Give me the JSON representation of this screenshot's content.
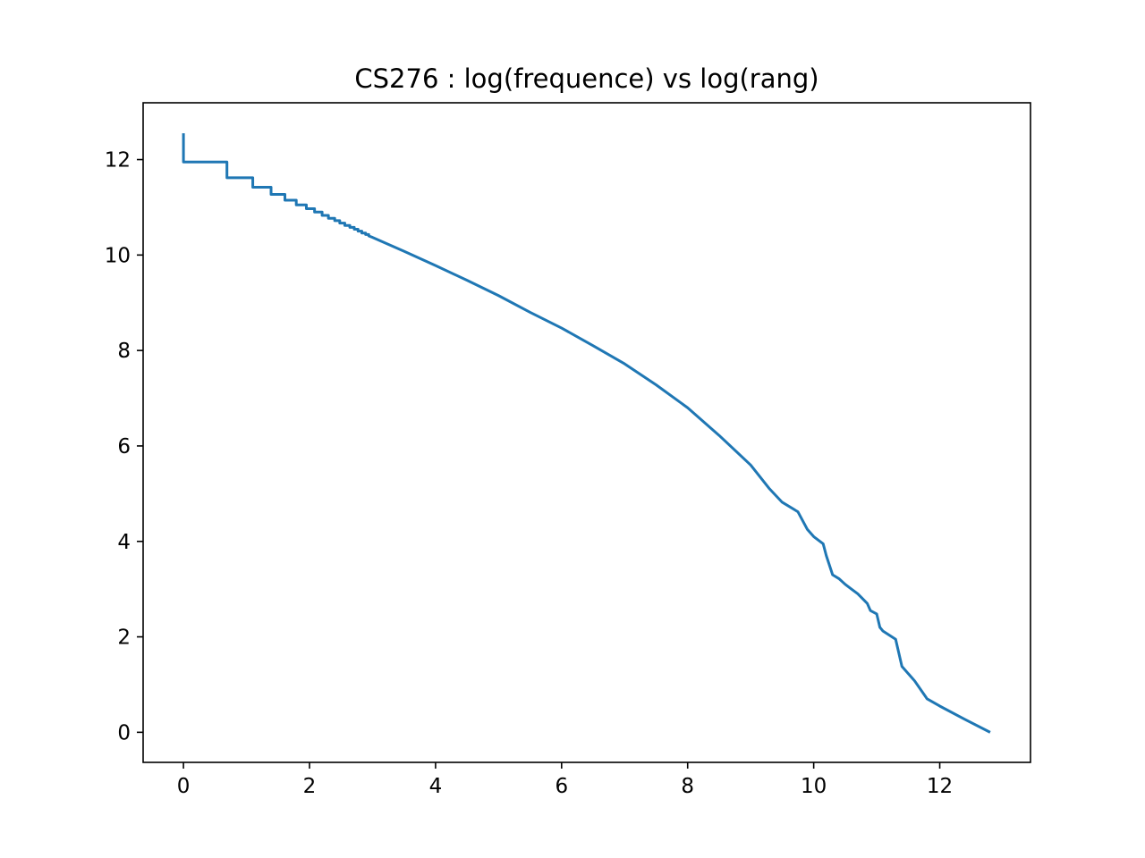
{
  "chart_data": {
    "type": "line",
    "title": "CS276 : log(frequence) vs log(rang)",
    "xlabel": "",
    "ylabel": "",
    "xlim": [
      -0.64,
      13.44
    ],
    "ylim": [
      -0.63,
      13.19
    ],
    "xticks": [
      0,
      2,
      4,
      6,
      8,
      10,
      12
    ],
    "yticks": [
      0,
      2,
      4,
      6,
      8,
      10,
      12
    ],
    "grid": false,
    "color": "#1f77b4",
    "series": [
      {
        "x": [
          0,
          0,
          0.69,
          0.69,
          1.1,
          1.1,
          1.39,
          1.39,
          1.61,
          1.61,
          1.79,
          1.79,
          1.95,
          1.95,
          2.08,
          2.08,
          2.2,
          2.2,
          2.3,
          2.3,
          2.4,
          2.4,
          2.48,
          2.48,
          2.56,
          2.56,
          2.64,
          2.64,
          2.71,
          2.71,
          2.77,
          2.77,
          2.83,
          2.83,
          2.89,
          2.89,
          2.94,
          2.94,
          3.0,
          3.5,
          4.0,
          4.5,
          5.0,
          5.5,
          6.0,
          6.5,
          7.0,
          7.5,
          8.0,
          8.5,
          9.0,
          9.3,
          9.5,
          9.75,
          9.9,
          10.0,
          10.15,
          10.2,
          10.3,
          10.4,
          10.5,
          10.6,
          10.7,
          10.85,
          10.9,
          11.0,
          11.05,
          11.1,
          11.3,
          11.4,
          11.6,
          11.8,
          12.0,
          12.4,
          12.8
        ],
        "y": [
          12.55,
          11.95,
          11.95,
          11.62,
          11.62,
          11.42,
          11.42,
          11.27,
          11.27,
          11.15,
          11.15,
          11.05,
          11.05,
          10.97,
          10.97,
          10.9,
          10.9,
          10.83,
          10.83,
          10.77,
          10.77,
          10.72,
          10.72,
          10.67,
          10.67,
          10.62,
          10.62,
          10.58,
          10.58,
          10.54,
          10.54,
          10.5,
          10.5,
          10.46,
          10.46,
          10.43,
          10.43,
          10.4,
          10.37,
          10.08,
          9.78,
          9.47,
          9.15,
          8.8,
          8.47,
          8.1,
          7.72,
          7.28,
          6.8,
          6.22,
          5.6,
          5.1,
          4.82,
          4.62,
          4.25,
          4.1,
          3.95,
          3.7,
          3.3,
          3.22,
          3.1,
          3.0,
          2.9,
          2.7,
          2.55,
          2.48,
          2.2,
          2.12,
          1.95,
          1.38,
          1.08,
          0.7,
          0.55,
          0.27,
          0.0
        ]
      }
    ]
  }
}
